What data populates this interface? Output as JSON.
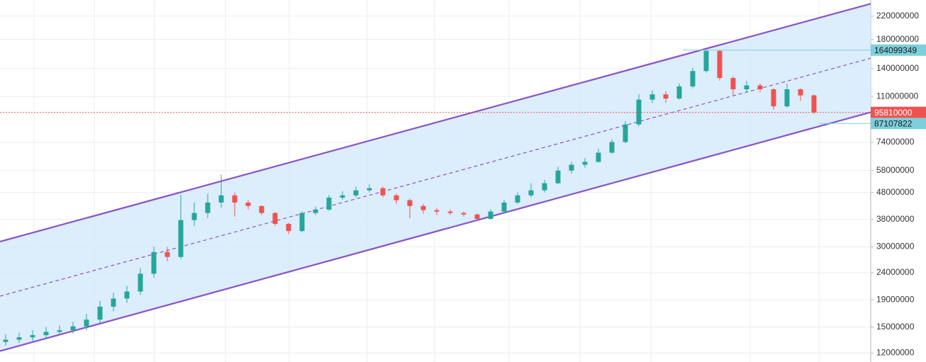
{
  "chart_data": {
    "type": "candlestick",
    "log_scale": true,
    "grid": true,
    "ylim": [
      11100000,
      253000000
    ],
    "yticks": [
      12000000,
      15000000,
      19000000,
      24000000,
      30000000,
      38000000,
      48000000,
      58000000,
      74000000,
      110000000,
      140000000,
      180000000,
      220000000
    ],
    "up_color": "#26a69a",
    "down_color": "#ef5350",
    "open": [
      13200000,
      13460000,
      13740000,
      14000000,
      14400000,
      14600000,
      15100000,
      16000000,
      17900000,
      19200000,
      20400000,
      23800000,
      28700000,
      27500000,
      37800000,
      40200000,
      44000000,
      46800000,
      44000000,
      42700000,
      40200000,
      36600000,
      34400000,
      40200000,
      41400000,
      45900000,
      46800000,
      48900000,
      49800000,
      46800000,
      44900000,
      42700000,
      41200000,
      40700000,
      40200000,
      39700000,
      38200000,
      40700000,
      44000000,
      46800000,
      48900000,
      52000000,
      58000000,
      61000000,
      62500000,
      67700000,
      74200000,
      86400000,
      107000000,
      112000000,
      108000000,
      120000000,
      137000000,
      163000000,
      129000000,
      117000000,
      121000000,
      117000000,
      101000000,
      117000000,
      111000000
    ],
    "high": [
      14100000,
      14300000,
      14600000,
      15000000,
      15200000,
      15700000,
      16800000,
      18800000,
      20200000,
      21400000,
      25000000,
      30100000,
      30000000,
      47000000,
      44000000,
      47500000,
      56000000,
      48000000,
      45000000,
      42900000,
      40500000,
      37000000,
      40800000,
      42500000,
      47000000,
      48500000,
      50500000,
      51500000,
      50500000,
      47500000,
      45500000,
      43500000,
      42000000,
      41500000,
      40800000,
      40000000,
      41500000,
      45000000,
      48000000,
      52000000,
      53500000,
      60000000,
      62500000,
      64500000,
      70000000,
      76000000,
      89000000,
      112000000,
      116000000,
      115000000,
      123000000,
      141000000,
      164000000,
      165000000,
      131000000,
      126000000,
      123000000,
      118000000,
      123000000,
      118000000,
      112000000
    ],
    "low": [
      12800000,
      13100000,
      13300000,
      13600000,
      14000000,
      14200000,
      14600000,
      15500000,
      17200000,
      18500000,
      19800000,
      23000000,
      26500000,
      27000000,
      36000000,
      38500000,
      42000000,
      39000000,
      41500000,
      39500000,
      36000000,
      33500000,
      34000000,
      39500000,
      41000000,
      45000000,
      46000000,
      48000000,
      46000000,
      43500000,
      38500000,
      40000000,
      39500000,
      39500000,
      39000000,
      37800000,
      38000000,
      40000000,
      43500000,
      46000000,
      48000000,
      51500000,
      56500000,
      59500000,
      62000000,
      67000000,
      73500000,
      85000000,
      104000000,
      104000000,
      107000000,
      118000000,
      135000000,
      126000000,
      110000000,
      114000000,
      114000000,
      98000000,
      100000000,
      106000000,
      94500000
    ],
    "close": [
      13460000,
      13740000,
      14000000,
      14400000,
      14600000,
      15100000,
      16000000,
      17900000,
      19200000,
      20400000,
      23800000,
      28700000,
      27500000,
      37800000,
      40200000,
      44000000,
      46800000,
      44000000,
      42700000,
      40200000,
      36600000,
      34400000,
      40200000,
      41400000,
      45900000,
      46800000,
      48900000,
      49800000,
      46800000,
      44900000,
      42700000,
      41200000,
      40700000,
      40200000,
      39700000,
      38200000,
      40700000,
      44000000,
      46800000,
      48900000,
      52000000,
      58000000,
      61000000,
      62500000,
      67700000,
      74200000,
      86400000,
      107000000,
      112000000,
      108000000,
      120000000,
      137000000,
      163000000,
      129000000,
      117000000,
      121000000,
      117000000,
      101000000,
      117000000,
      111000000,
      95810000
    ],
    "channel": {
      "color": "#8a54c4",
      "fill": "#d6eafb",
      "upper": [
        31400000,
        245000000
      ],
      "middle": [
        19600000,
        153000000
      ],
      "lower": [
        12200000,
        96000000
      ]
    },
    "price_labels": [
      {
        "value": 164099349,
        "color": "#7ccfdb",
        "text_color": "#1a1a1a"
      },
      {
        "value": 95810000,
        "color": "#ef5350",
        "text_color": "#ffffff"
      },
      {
        "value": 87107822,
        "color": "#7ccfdb",
        "text_color": "#1a1a1a"
      }
    ]
  }
}
